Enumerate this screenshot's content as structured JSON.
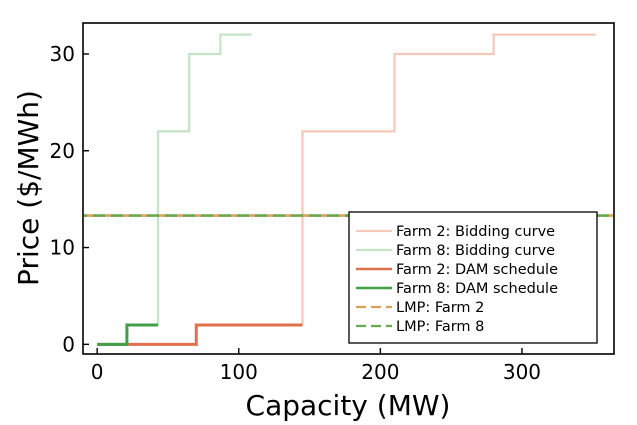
{
  "chart_data": {
    "type": "line",
    "xlabel": "Capacity (MW)",
    "ylabel": "Price ($/MWh)",
    "xlim": [
      -10,
      365
    ],
    "ylim": [
      -1,
      33.2
    ],
    "x_ticks": [
      0,
      100,
      200,
      300
    ],
    "y_ticks": [
      0,
      10,
      20,
      30
    ],
    "grid": false,
    "legend_position": "lower-right",
    "colors": {
      "farm2": "#e0704a",
      "farm8": "#3fa047",
      "farm2_light": "#f6c8b8",
      "farm8_light": "#c5e3c7",
      "lmp_farm2": "#d9a05a",
      "lmp_farm8": "#6aa84f"
    },
    "series": [
      {
        "name": "Farm 2: Bidding curve",
        "style": "solid-light",
        "color": "#f6c8b8",
        "x": [
          145,
          145,
          210,
          210,
          280,
          280,
          352
        ],
        "y": [
          2,
          22,
          22,
          30,
          30,
          32,
          32
        ]
      },
      {
        "name": "Farm 8: Bidding curve",
        "style": "solid-light",
        "color": "#c5e3c7",
        "x": [
          43,
          43,
          65,
          65,
          87,
          87,
          109
        ],
        "y": [
          2,
          22,
          22,
          30,
          30,
          32,
          32
        ]
      },
      {
        "name": "Farm 2: DAM schedule",
        "style": "solid",
        "color": "#e0704a",
        "x": [
          0,
          70,
          70,
          145
        ],
        "y": [
          0,
          0,
          2,
          2
        ]
      },
      {
        "name": "Farm 8: DAM schedule",
        "style": "solid",
        "color": "#3fa047",
        "x": [
          0,
          21,
          21,
          43
        ],
        "y": [
          0,
          0,
          2,
          2
        ]
      },
      {
        "name": "LMP: Farm 2",
        "style": "dashed",
        "color": "#d9a05a",
        "value": 13.3
      },
      {
        "name": "LMP: Farm 8",
        "style": "dashed",
        "color": "#6aa84f",
        "value": 13.3
      }
    ]
  }
}
